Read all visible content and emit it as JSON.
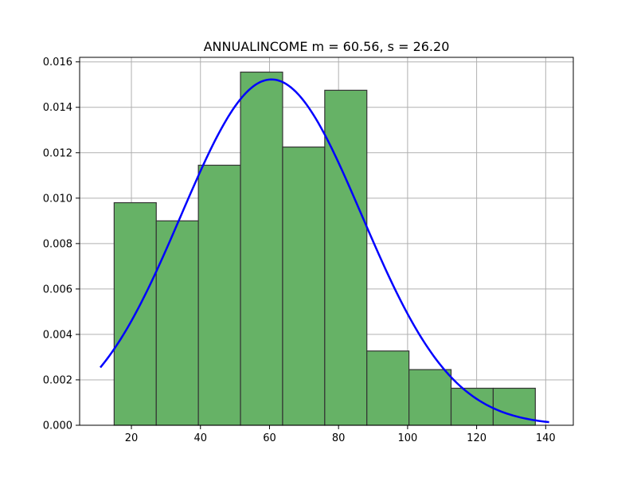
{
  "chart_data": {
    "type": "bar",
    "title": "ANNUALINCOME  m = 60.56,  s = 26.20",
    "xlabel": "",
    "ylabel": "",
    "xlim": [
      5,
      148
    ],
    "ylim": [
      0,
      0.0162
    ],
    "xticks": [
      20,
      40,
      60,
      80,
      100,
      120,
      140
    ],
    "xtick_labels": [
      "20",
      "40",
      "60",
      "80",
      "100",
      "120",
      "140"
    ],
    "yticks": [
      0,
      0.002,
      0.004,
      0.006,
      0.008,
      0.01,
      0.012,
      0.014,
      0.016
    ],
    "ytick_labels": [
      "0.000",
      "0.002",
      "0.004",
      "0.006",
      "0.008",
      "0.010",
      "0.012",
      "0.014",
      "0.016"
    ],
    "grid": true,
    "bins": [
      {
        "x0": 15.0,
        "x1": 27.2,
        "density": 0.0098
      },
      {
        "x0": 27.2,
        "x1": 39.4,
        "density": 0.009
      },
      {
        "x0": 39.4,
        "x1": 51.6,
        "density": 0.01145
      },
      {
        "x0": 51.6,
        "x1": 63.8,
        "density": 0.01555
      },
      {
        "x0": 63.8,
        "x1": 76.0,
        "density": 0.01225
      },
      {
        "x0": 76.0,
        "x1": 88.2,
        "density": 0.01475
      },
      {
        "x0": 88.2,
        "x1": 100.4,
        "density": 0.00327
      },
      {
        "x0": 100.4,
        "x1": 112.6,
        "density": 0.00245
      },
      {
        "x0": 112.6,
        "x1": 124.8,
        "density": 0.00163
      },
      {
        "x0": 124.8,
        "x1": 137.0,
        "density": 0.00163
      }
    ],
    "fit_curve": {
      "type": "normal-pdf",
      "mean": 60.56,
      "std": 26.2,
      "x_range": [
        11,
        141
      ],
      "color": "#0000ff"
    },
    "colors": {
      "bar_fill": "#66b266",
      "bar_edge": "#333333",
      "grid": "#b0b0b0"
    }
  }
}
